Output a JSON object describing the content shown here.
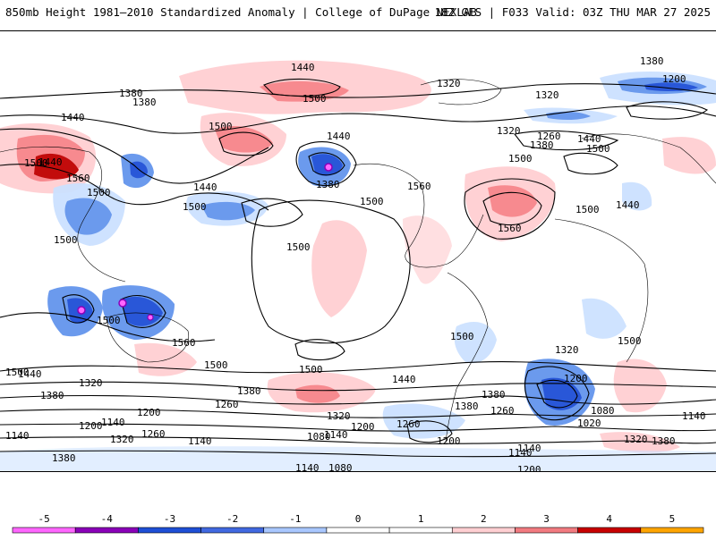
{
  "header": {
    "title_left": "850mb Height 1981–2010 Standardized Anomaly | College of DuPage NEXLAB",
    "title_right": "18Z GFS | F033 Valid: 03Z THU MAR 27 2025"
  },
  "colors": {
    "pos": [
      "#ffcfd2",
      "#f7848a",
      "#e85055",
      "#bf0000",
      "#ffa500"
    ],
    "neg": [
      "#cce1ff",
      "#6495ed",
      "#1e4fd6",
      "#8a00b8",
      "#ff66ff"
    ],
    "contour": "#000000",
    "coast": "#000000"
  },
  "colorbar": {
    "ticks": [
      "-5",
      "-4",
      "-3",
      "-2",
      "-1",
      "0",
      "1",
      "2",
      "3",
      "4",
      "5"
    ],
    "colors": [
      "#ff66ff",
      "#8a00b8",
      "#1e4fd6",
      "#4169e1",
      "#a9c7ff",
      "#ffffff",
      "#ffffff",
      "#ffcfd2",
      "#f27b80",
      "#c80000",
      "#ffa500"
    ]
  },
  "contour_labels": [
    {
      "text": "1380",
      "id": "c1"
    },
    {
      "text": "1380",
      "id": "c2"
    },
    {
      "text": "1440",
      "id": "c3"
    },
    {
      "text": "1440",
      "id": "c4"
    },
    {
      "text": "1500",
      "id": "c5"
    },
    {
      "text": "1500",
      "id": "c6"
    },
    {
      "text": "1320",
      "id": "c7"
    },
    {
      "text": "1380",
      "id": "c8"
    },
    {
      "text": "1320",
      "id": "c9"
    },
    {
      "text": "1200",
      "id": "c10"
    },
    {
      "text": "1320",
      "id": "c11"
    },
    {
      "text": "1260",
      "id": "c12"
    },
    {
      "text": "1380",
      "id": "c13"
    },
    {
      "text": "1440",
      "id": "c14"
    },
    {
      "text": "1500",
      "id": "c15"
    },
    {
      "text": "1560",
      "id": "c16"
    },
    {
      "text": "1440",
      "id": "c17"
    },
    {
      "text": "1500",
      "id": "c18"
    },
    {
      "text": "1440",
      "id": "c19"
    },
    {
      "text": "1380",
      "id": "c20"
    },
    {
      "text": "1500",
      "id": "c21"
    },
    {
      "text": "1560",
      "id": "c22"
    },
    {
      "text": "1500",
      "id": "c23"
    },
    {
      "text": "1560",
      "id": "c24"
    },
    {
      "text": "1500",
      "id": "c25"
    },
    {
      "text": "1440",
      "id": "c26"
    },
    {
      "text": "1500",
      "id": "c27"
    },
    {
      "text": "1500",
      "id": "c28"
    },
    {
      "text": "1500",
      "id": "c29"
    },
    {
      "text": "1500",
      "id": "c30"
    },
    {
      "text": "1560",
      "id": "c31"
    },
    {
      "text": "1500",
      "id": "c32"
    },
    {
      "text": "1500",
      "id": "c33"
    },
    {
      "text": "1440",
      "id": "c34"
    },
    {
      "text": "1500",
      "id": "c35"
    },
    {
      "text": "1500",
      "id": "c36"
    },
    {
      "text": "1440",
      "id": "c37"
    },
    {
      "text": "1320",
      "id": "c38"
    },
    {
      "text": "1200",
      "id": "c39"
    },
    {
      "text": "1020",
      "id": "c40"
    },
    {
      "text": "1080",
      "id": "c41"
    },
    {
      "text": "1380",
      "id": "c42"
    },
    {
      "text": "1260",
      "id": "c43"
    },
    {
      "text": "1140",
      "id": "c44"
    },
    {
      "text": "1320",
      "id": "c45"
    },
    {
      "text": "1380",
      "id": "c46"
    },
    {
      "text": "1140",
      "id": "c47"
    },
    {
      "text": "1500",
      "id": "c48"
    },
    {
      "text": "1380",
      "id": "c49"
    },
    {
      "text": "1320",
      "id": "c50"
    },
    {
      "text": "1440",
      "id": "c51"
    },
    {
      "text": "1380",
      "id": "c52"
    },
    {
      "text": "1260",
      "id": "c53"
    },
    {
      "text": "1200",
      "id": "c54"
    },
    {
      "text": "1140",
      "id": "c55"
    },
    {
      "text": "1200",
      "id": "c56"
    },
    {
      "text": "1140",
      "id": "c57"
    },
    {
      "text": "1320",
      "id": "c58"
    },
    {
      "text": "1260",
      "id": "c59"
    },
    {
      "text": "1140",
      "id": "c60"
    },
    {
      "text": "1380",
      "id": "c61"
    },
    {
      "text": "1320",
      "id": "c62"
    },
    {
      "text": "1200",
      "id": "c63"
    },
    {
      "text": "1140",
      "id": "c64"
    },
    {
      "text": "1260",
      "id": "c65"
    },
    {
      "text": "1080",
      "id": "c66"
    },
    {
      "text": "1200",
      "id": "c67"
    },
    {
      "text": "1140",
      "id": "c68"
    },
    {
      "text": "1080",
      "id": "c69"
    },
    {
      "text": "1140",
      "id": "c70"
    },
    {
      "text": "1200",
      "id": "c71"
    },
    {
      "text": "1380",
      "id": "c72"
    },
    {
      "text": "1500",
      "id": "c73"
    }
  ]
}
